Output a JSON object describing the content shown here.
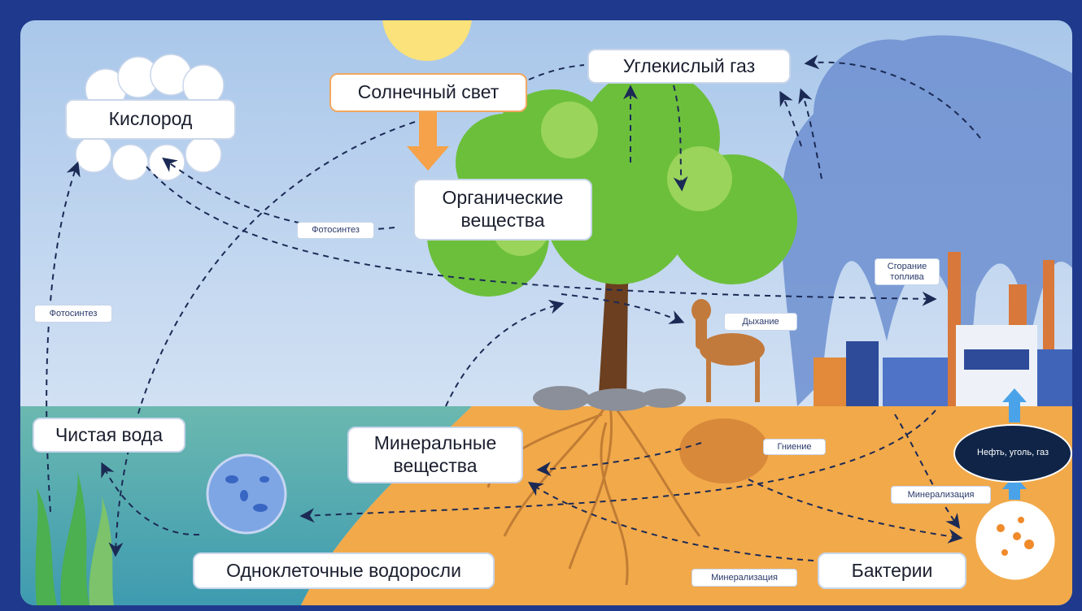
{
  "labels": {
    "oxygen": "Кислород",
    "sunlight": "Солнечный свет",
    "co2": "Углекислый газ",
    "organic": [
      "Органические",
      "вещества"
    ],
    "photosynthesis_upper": "Фотосинтез",
    "photosynthesis_left": "Фотосинтез",
    "combustion": [
      "Сгорание",
      "топлива"
    ],
    "respiration": "Дыхание",
    "clean_water": "Чистая вода",
    "minerals": [
      "Минеральные",
      "вещества"
    ],
    "decay": "Гниение",
    "fossil": "Нефть, уголь, газ",
    "mineralization_right": "Минерализация",
    "algae": "Одноклеточные водоросли",
    "bacteria": "Бактерии",
    "mineralization_bottom": "Минерализация"
  }
}
